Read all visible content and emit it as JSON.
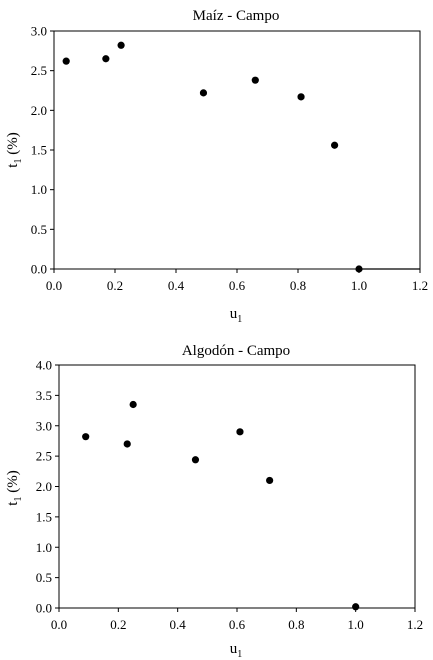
{
  "chart_data": [
    {
      "type": "scatter",
      "title": "Maíz - Campo",
      "xlabel_main": "u",
      "xlabel_sub": "1",
      "ylabel_main": "t",
      "ylabel_sub": "1",
      "ylabel_rest": " (%)",
      "xlim": [
        0.0,
        1.2
      ],
      "ylim": [
        0.0,
        3.0
      ],
      "xticks": [
        "0.0",
        "0.2",
        "0.4",
        "0.6",
        "0.8",
        "1.0",
        "1.2"
      ],
      "yticks": [
        "0.0",
        "0.5",
        "1.0",
        "1.5",
        "2.0",
        "2.5",
        "3.0"
      ],
      "grid": false,
      "legend": "none",
      "points": [
        {
          "x": 0.04,
          "y": 2.62
        },
        {
          "x": 0.17,
          "y": 2.65
        },
        {
          "x": 0.22,
          "y": 2.82
        },
        {
          "x": 0.49,
          "y": 2.22
        },
        {
          "x": 0.66,
          "y": 2.38
        },
        {
          "x": 0.81,
          "y": 2.17
        },
        {
          "x": 0.92,
          "y": 1.56
        },
        {
          "x": 1.0,
          "y": 0.0
        }
      ],
      "line": [
        [
          1.0,
          0.0
        ],
        [
          1.2,
          0.0
        ]
      ]
    },
    {
      "type": "scatter",
      "title": "Algodón - Campo",
      "xlabel_main": "u",
      "xlabel_sub": "1",
      "ylabel_main": "t",
      "ylabel_sub": "1",
      "ylabel_rest": " (%)",
      "xlim": [
        0.0,
        1.2
      ],
      "ylim": [
        0.0,
        4.0
      ],
      "xticks": [
        "0.0",
        "0.2",
        "0.4",
        "0.6",
        "0.8",
        "1.0",
        "1.2"
      ],
      "yticks": [
        "0.0",
        "0.5",
        "1.0",
        "1.5",
        "2.0",
        "2.5",
        "3.0",
        "3.5",
        "4.0"
      ],
      "grid": false,
      "legend": "none",
      "points": [
        {
          "x": 0.09,
          "y": 2.82
        },
        {
          "x": 0.23,
          "y": 2.7
        },
        {
          "x": 0.25,
          "y": 3.35
        },
        {
          "x": 0.46,
          "y": 2.44
        },
        {
          "x": 0.61,
          "y": 2.9
        },
        {
          "x": 0.71,
          "y": 2.1
        },
        {
          "x": 1.0,
          "y": 0.02
        }
      ]
    }
  ]
}
